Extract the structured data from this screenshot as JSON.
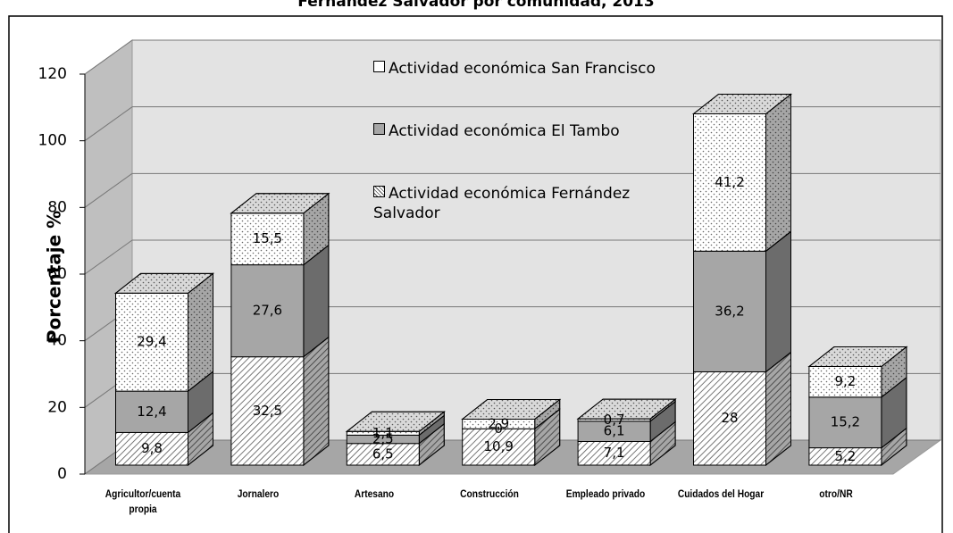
{
  "chart_data": {
    "type": "bar3d_stacked",
    "title": "Fernández Salvador por comunidad, 2013",
    "y_label": "Porcentaje %",
    "categories": [
      "Agricultor/cuenta propia",
      "Jornalero",
      "Artesano",
      "Construcción",
      "Empleado privado",
      "Cuidados del Hogar",
      "otro/NR"
    ],
    "series": [
      {
        "name": "Actividad económica Fernández Salvador",
        "color": "#ffffff",
        "pattern": "hatch",
        "values": [
          9.8,
          32.5,
          6.5,
          10.9,
          7.1,
          28,
          5.2
        ],
        "value_labels": [
          "9,8",
          "32,5",
          "6,5",
          "10,9",
          "7,1",
          "28",
          "5,2"
        ]
      },
      {
        "name": "Actividad económica El Tambo",
        "color": "#a6a6a6",
        "pattern": "solid",
        "values": [
          12.4,
          27.6,
          2.5,
          0,
          6.1,
          36.2,
          15.2
        ],
        "value_labels": [
          "12,4",
          "27,6",
          "2,5",
          "0",
          "6,1",
          "36,2",
          "15,2"
        ]
      },
      {
        "name": "Actividad económica San Francisco",
        "color": "#ffffff",
        "pattern": "dots",
        "values": [
          29.4,
          15.5,
          1.1,
          2.9,
          0.7,
          41.2,
          9.2
        ],
        "value_labels": [
          "29,4",
          "15,5",
          "1,1",
          "2,9",
          "0,7",
          "41,2",
          "9,2"
        ]
      }
    ],
    "ylim": [
      0,
      120
    ],
    "yticks": [
      0,
      20,
      40,
      60,
      80,
      100,
      120
    ],
    "grid": true
  }
}
